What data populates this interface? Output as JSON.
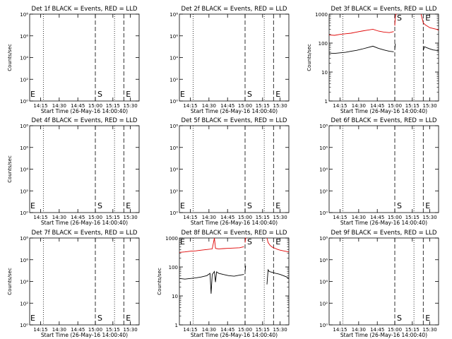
{
  "figure": {
    "background": "#ffffff",
    "axis_color": "#000000",
    "events_color": "#000000",
    "lld_color": "#e00000"
  },
  "chart_data": [
    {
      "type": "line",
      "title": "Det 1f BLACK = Events, RED = LLD",
      "xlabel": "Start Time (26-May-16 14:00:40)",
      "ylabel": "Counts/sec",
      "log_y": true,
      "ylim": [
        1,
        100000000
      ],
      "yticks": [
        "10⁸",
        "10⁶",
        "10⁴",
        "10²",
        "10⁰"
      ],
      "xticks": [
        "14:15",
        "14:30",
        "14:45",
        "15:00",
        "15:15",
        "15:30"
      ],
      "event_markers": [
        {
          "label": "E",
          "x": 0
        },
        {
          "label": "S",
          "x": 60
        },
        {
          "label": "E",
          "x": 86
        }
      ],
      "dotted_lines": [
        12.5,
        77.5
      ],
      "series": []
    },
    {
      "type": "line",
      "title": "Det 2f BLACK = Events, RED = LLD",
      "xlabel": "Start Time (26-May-16 14:00:40)",
      "ylabel": "",
      "log_y": true,
      "ylim": [
        1,
        100000000
      ],
      "yticks": [
        "10⁸",
        "10⁶",
        "10⁴",
        "10²",
        "10⁰"
      ],
      "xticks": [
        "14:15",
        "14:30",
        "14:45",
        "15:00",
        "15:15",
        "15:30"
      ],
      "event_markers": [
        {
          "label": "E",
          "x": 0
        },
        {
          "label": "S",
          "x": 60
        },
        {
          "label": "E",
          "x": 86
        }
      ],
      "dotted_lines": [
        12.5,
        77.5
      ],
      "series": []
    },
    {
      "type": "line",
      "title": "Det 3f BLACK = Events, RED = LLD",
      "xlabel": "Start Time (26-May-16 14:00:40)",
      "ylabel": "Counts/sec",
      "log_y": true,
      "ylim": [
        1,
        1000
      ],
      "yticks": [
        "1000",
        "100",
        "10",
        "1"
      ],
      "xticks": [
        "14:15",
        "14:30",
        "14:45",
        "15:00",
        "15:15",
        "15:30"
      ],
      "event_markers": [
        {
          "label": "S",
          "x": 60
        },
        {
          "label": "E",
          "x": 86
        }
      ],
      "dotted_lines": [
        12.5,
        77.5
      ],
      "series": [
        {
          "name": "LLD",
          "color": "#e00000",
          "segments": [
            {
              "x": [
                0,
                5,
                10,
                15,
                20,
                25,
                30,
                35,
                40,
                45,
                50,
                55,
                59
              ],
              "y": [
                190,
                185,
                200,
                210,
                220,
                240,
                260,
                280,
                300,
                260,
                240,
                230,
                250
              ]
            },
            {
              "x": [
                60,
                60.5,
                61,
                61.5
              ],
              "y": [
                400,
                800,
                1000,
                1000
              ]
            },
            {
              "x": [
                84,
                85,
                86,
                88,
                90,
                92,
                95,
                98,
                100
              ],
              "y": [
                1000,
                700,
                500,
                420,
                380,
                340,
                320,
                300,
                280
              ]
            }
          ]
        },
        {
          "name": "Events",
          "color": "#000000",
          "segments": [
            {
              "x": [
                0,
                5,
                10,
                15,
                20,
                25,
                30,
                35,
                40,
                45,
                50,
                55,
                59
              ],
              "y": [
                45,
                44,
                46,
                48,
                52,
                56,
                62,
                70,
                78,
                66,
                58,
                52,
                50
              ]
            },
            {
              "x": [
                60,
                60.5
              ],
              "y": [
                60,
                95
              ]
            },
            {
              "x": [
                86,
                87,
                89,
                92,
                95,
                98,
                100
              ],
              "y": [
                55,
                75,
                70,
                63,
                58,
                56,
                55
              ]
            }
          ]
        }
      ]
    },
    {
      "type": "line",
      "title": "Det 4f BLACK = Events, RED = LLD",
      "xlabel": "Start Time (26-May-16 14:00:40)",
      "ylabel": "Counts/sec",
      "log_y": true,
      "ylim": [
        1,
        100000000
      ],
      "yticks": [
        "10⁸",
        "10⁶",
        "10⁴",
        "10²",
        "10⁰"
      ],
      "xticks": [
        "14:15",
        "14:30",
        "14:45",
        "15:00",
        "15:15",
        "15:30"
      ],
      "event_markers": [
        {
          "label": "E",
          "x": 0
        },
        {
          "label": "S",
          "x": 60
        },
        {
          "label": "E",
          "x": 86
        }
      ],
      "dotted_lines": [
        12.5,
        77.5
      ],
      "series": []
    },
    {
      "type": "line",
      "title": "Det 5f BLACK = Events, RED = LLD",
      "xlabel": "Start Time (26-May-16 14:00:40)",
      "ylabel": "",
      "log_y": true,
      "ylim": [
        1,
        100000000
      ],
      "yticks": [
        "10⁸",
        "10⁶",
        "10⁴",
        "10²",
        "10⁰"
      ],
      "xticks": [
        "14:15",
        "14:30",
        "14:45",
        "15:00",
        "15:15",
        "15:30"
      ],
      "event_markers": [
        {
          "label": "E",
          "x": 0
        },
        {
          "label": "S",
          "x": 60
        },
        {
          "label": "E",
          "x": 86
        }
      ],
      "dotted_lines": [
        12.5,
        77.5
      ],
      "series": []
    },
    {
      "type": "line",
      "title": "Det 6f BLACK = Events, RED = LLD",
      "xlabel": "Start Time (26-May-16 14:00:40)",
      "ylabel": "",
      "log_y": true,
      "ylim": [
        1,
        100000000
      ],
      "yticks": [
        "10⁸",
        "10⁶",
        "10⁴",
        "10²",
        "10⁰"
      ],
      "xticks": [
        "14:15",
        "14:30",
        "14:45",
        "15:00",
        "15:15",
        "15:30"
      ],
      "event_markers": [
        {
          "label": "S",
          "x": 60
        },
        {
          "label": "E",
          "x": 86
        }
      ],
      "dotted_lines": [
        12.5,
        77.5
      ],
      "series": []
    },
    {
      "type": "line",
      "title": "Det 7f BLACK = Events, RED = LLD",
      "xlabel": "Start Time (26-May-16 14:00:40)",
      "ylabel": "Counts/sec",
      "log_y": true,
      "ylim": [
        1,
        100000000
      ],
      "yticks": [
        "10⁸",
        "10⁶",
        "10⁴",
        "10²",
        "10⁰"
      ],
      "xticks": [
        "14:15",
        "14:30",
        "14:45",
        "15:00",
        "15:15",
        "15:30"
      ],
      "event_markers": [
        {
          "label": "E",
          "x": 0
        },
        {
          "label": "S",
          "x": 60
        },
        {
          "label": "E",
          "x": 86
        }
      ],
      "dotted_lines": [
        12.5,
        77.5
      ],
      "series": []
    },
    {
      "type": "line",
      "title": "Det 8f BLACK = Events, RED = LLD",
      "xlabel": "Start Time (26-May-16 14:00:40)",
      "ylabel": "Counts/sec",
      "log_y": true,
      "ylim": [
        1,
        1000
      ],
      "yticks": [
        "1000",
        "100",
        "10",
        "1"
      ],
      "xticks": [
        "14:15",
        "14:30",
        "14:45",
        "15:00",
        "15:15",
        "15:30"
      ],
      "event_markers": [
        {
          "label": "E",
          "x": 0
        },
        {
          "label": "S",
          "x": 60
        },
        {
          "label": "E",
          "x": 86
        }
      ],
      "dotted_lines": [
        12.5,
        77.5
      ],
      "series": [
        {
          "name": "LLD",
          "color": "#e00000",
          "segments": [
            {
              "x": [
                0,
                5,
                10,
                15,
                20,
                25,
                30,
                32,
                33,
                34,
                36,
                40,
                45,
                50,
                55,
                59
              ],
              "y": [
                320,
                330,
                350,
                360,
                380,
                400,
                420,
                1000,
                440,
                430,
                420,
                430,
                440,
                450,
                460,
                500
              ]
            },
            {
              "x": [
                60,
                60.5,
                61
              ],
              "y": [
                700,
                1000,
                1000
              ]
            },
            {
              "x": [
                80,
                81,
                83,
                85,
                88,
                90,
                92,
                95,
                98,
                100
              ],
              "y": [
                1000,
                700,
                550,
                480,
                430,
                400,
                380,
                360,
                340,
                330
              ]
            }
          ]
        },
        {
          "name": "Events",
          "color": "#000000",
          "segments": [
            {
              "x": [
                0,
                5,
                10,
                15,
                20,
                25,
                28,
                29,
                30,
                32,
                33,
                34,
                36,
                40,
                45,
                50,
                55,
                59
              ],
              "y": [
                40,
                38,
                40,
                42,
                45,
                50,
                60,
                12,
                55,
                70,
                30,
                68,
                60,
                55,
                50,
                48,
                52,
                55
              ]
            },
            {
              "x": [
                60,
                60.5
              ],
              "y": [
                70,
                110
              ]
            },
            {
              "x": [
                80,
                81,
                82,
                85,
                88,
                90,
                92,
                95,
                98,
                100
              ],
              "y": [
                25,
                80,
                70,
                65,
                60,
                58,
                55,
                50,
                45,
                40
              ]
            }
          ]
        }
      ]
    },
    {
      "type": "line",
      "title": "Det 9f BLACK = Events, RED = LLD",
      "xlabel": "Start Time (26-May-16 14:00:40)",
      "ylabel": "",
      "log_y": true,
      "ylim": [
        1,
        100000000
      ],
      "yticks": [
        "10⁸",
        "10⁶",
        "10⁴",
        "10²",
        "10⁰"
      ],
      "xticks": [
        "14:15",
        "14:30",
        "14:45",
        "15:00",
        "15:15",
        "15:30"
      ],
      "event_markers": [
        {
          "label": "S",
          "x": 60
        },
        {
          "label": "E",
          "x": 86
        }
      ],
      "dotted_lines": [
        12.5,
        77.5
      ],
      "series": []
    }
  ]
}
